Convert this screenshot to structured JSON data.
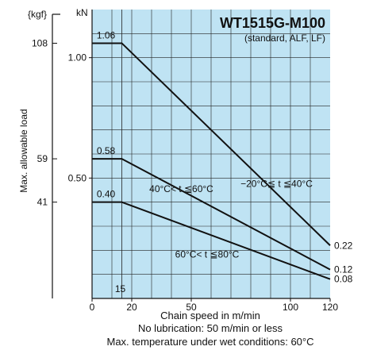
{
  "chart_data": {
    "type": "line",
    "title": "WT1515G-M100",
    "subtitle": "(standard, ALF, LF)",
    "xlabel": "Chain speed in m/min",
    "ylabel": "Max. allowable load",
    "y_unit_left": "{kgf}",
    "y_unit_right": "kN",
    "xlim": [
      0,
      120
    ],
    "ylim_kN": [
      0,
      1.2
    ],
    "x_ticks": [
      "0",
      "20",
      "50",
      "100",
      "120"
    ],
    "y_ticks_kN": [
      "1.00",
      "0.50"
    ],
    "y_ticks_kgf": [
      "108",
      "59",
      "41"
    ],
    "y_ticks_kgf_values_kN": [
      1.06,
      0.58,
      0.4
    ],
    "grid": true,
    "vertical_marker": {
      "x": 15,
      "label": "15"
    },
    "notes": [
      "No lubrication: 50 m/min or less",
      "Max. temperature under wet conditions: 60°C"
    ],
    "series": [
      {
        "name": "−20°C≦ t ≦40°C",
        "x": [
          0,
          15,
          120
        ],
        "y": [
          1.06,
          1.06,
          0.22
        ],
        "start_label": "1.06",
        "end_label": "0.22"
      },
      {
        "name": "40°C< t ≦60°C",
        "x": [
          0,
          15,
          120
        ],
        "y": [
          0.58,
          0.58,
          0.12
        ],
        "start_label": "0.58",
        "end_label": "0.12"
      },
      {
        "name": "60°C< t ≦80°C",
        "x": [
          0,
          15,
          120
        ],
        "y": [
          0.4,
          0.4,
          0.08
        ],
        "start_label": "0.40",
        "end_label": "0.08"
      }
    ]
  }
}
